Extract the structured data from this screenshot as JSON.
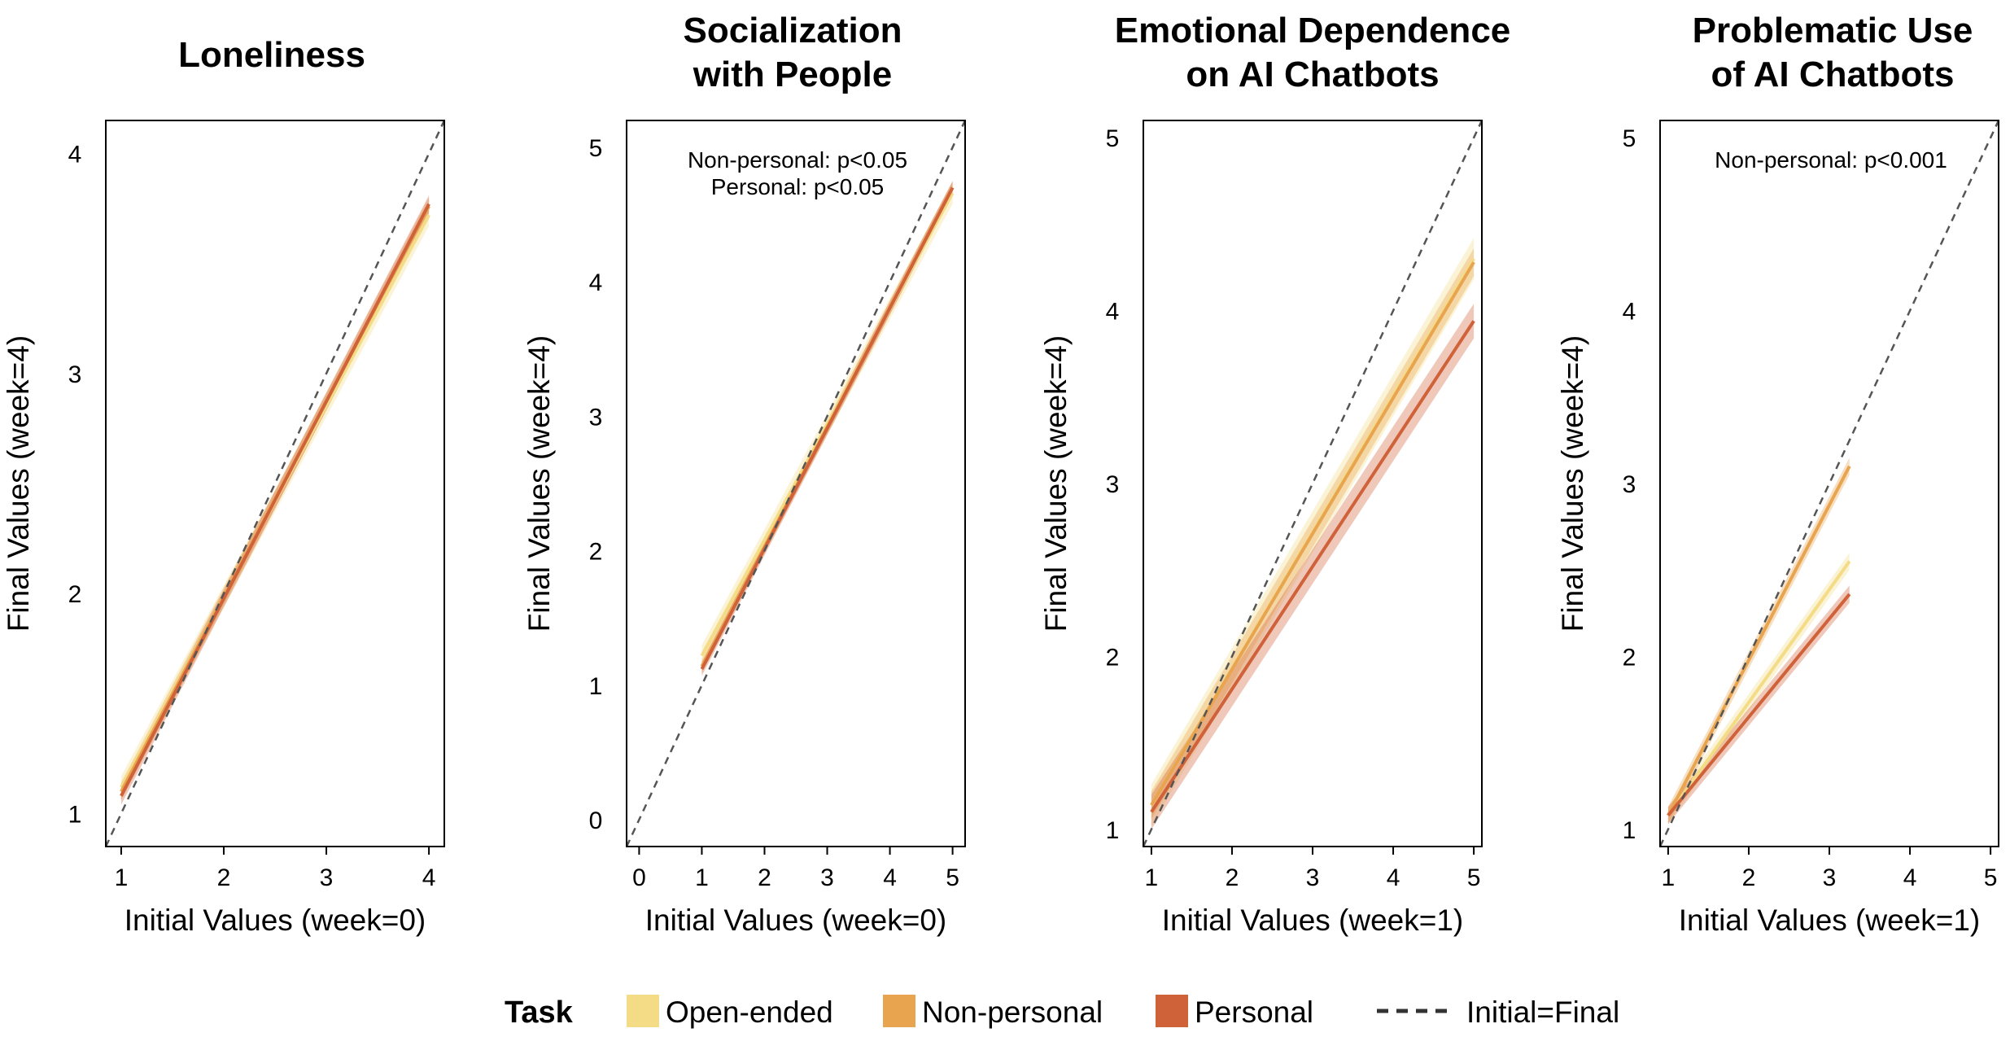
{
  "colors": {
    "open_ended": "#F4DC86",
    "non_personal": "#E8A44E",
    "personal": "#D0623A",
    "reference": "#555555"
  },
  "legend": {
    "title": "Task",
    "items": [
      {
        "label": "Open-ended",
        "color": "#F4DC86",
        "kind": "swatch"
      },
      {
        "label": "Non-personal",
        "color": "#E8A44E",
        "kind": "swatch"
      },
      {
        "label": "Personal",
        "color": "#D0623A",
        "kind": "swatch"
      },
      {
        "label": "Initial=Final",
        "color": "#333333",
        "kind": "dashed"
      }
    ]
  },
  "chart_data": [
    {
      "type": "line",
      "title": [
        "Loneliness"
      ],
      "xlabel": "Initial Values (week=0)",
      "ylabel": "Final Values (week=4)",
      "xlim": [
        0.85,
        4.15
      ],
      "ylim": [
        0.85,
        4.15
      ],
      "xticks": [
        1,
        2,
        3,
        4
      ],
      "yticks": [
        1,
        2,
        3,
        4
      ],
      "annotations": [],
      "reference_line": "Initial=Final",
      "series": [
        {
          "name": "Open-ended",
          "x": [
            1,
            4
          ],
          "y": [
            1.12,
            3.72
          ],
          "ci": 0.05
        },
        {
          "name": "Non-personal",
          "x": [
            1,
            4
          ],
          "y": [
            1.1,
            3.76
          ],
          "ci": 0.04
        },
        {
          "name": "Personal",
          "x": [
            1,
            4
          ],
          "y": [
            1.08,
            3.77
          ],
          "ci": 0.04
        }
      ]
    },
    {
      "type": "line",
      "title": [
        "Socialization",
        "with People"
      ],
      "xlabel": "Initial Values (week=0)",
      "ylabel": "Final Values (week=4)",
      "xlim": [
        -0.2,
        5.2
      ],
      "ylim": [
        -0.2,
        5.2
      ],
      "xticks": [
        0,
        1,
        2,
        3,
        4,
        5
      ],
      "yticks": [
        0,
        1,
        2,
        3,
        4,
        5
      ],
      "annotations": [
        "Non-personal: p<0.05",
        "Personal: p<0.05"
      ],
      "reference_line": "Initial=Final",
      "series": [
        {
          "name": "Open-ended",
          "x": [
            1,
            5
          ],
          "y": [
            1.22,
            4.66
          ],
          "ci": 0.08
        },
        {
          "name": "Non-personal",
          "x": [
            1,
            5
          ],
          "y": [
            1.14,
            4.7
          ],
          "ci": 0.05
        },
        {
          "name": "Personal",
          "x": [
            1,
            5
          ],
          "y": [
            1.12,
            4.7
          ],
          "ci": 0.05
        }
      ]
    },
    {
      "type": "line",
      "title": [
        "Emotional Dependence",
        "on AI Chatbots"
      ],
      "xlabel": "Initial Values (week=1)",
      "ylabel": "Final Values (week=4)",
      "xlim": [
        0.9,
        5.1
      ],
      "ylim": [
        0.9,
        5.1
      ],
      "xticks": [
        1,
        2,
        3,
        4,
        5
      ],
      "yticks": [
        1,
        2,
        3,
        4,
        5
      ],
      "annotations": [],
      "reference_line": "Initial=Final",
      "series": [
        {
          "name": "Open-ended",
          "x": [
            1,
            5
          ],
          "y": [
            1.14,
            4.3
          ],
          "ci": 0.12
        },
        {
          "name": "Non-personal",
          "x": [
            1,
            5
          ],
          "y": [
            1.14,
            4.28
          ],
          "ci": 0.08
        },
        {
          "name": "Personal",
          "x": [
            1,
            5
          ],
          "y": [
            1.1,
            3.94
          ],
          "ci": 0.1
        }
      ]
    },
    {
      "type": "line",
      "title": [
        "Problematic Use",
        "of AI Chatbots"
      ],
      "xlabel": "Initial Values (week=1)",
      "ylabel": "Final Values (week=4)",
      "xlim": [
        0.9,
        5.1
      ],
      "ylim": [
        0.9,
        5.1
      ],
      "xticks": [
        1,
        2,
        3,
        4,
        5
      ],
      "yticks": [
        1,
        2,
        3,
        4,
        5
      ],
      "annotations": [
        "Non-personal: p<0.001"
      ],
      "reference_line": "Initial=Final",
      "series": [
        {
          "name": "Open-ended",
          "x": [
            1,
            3.25
          ],
          "y": [
            1.08,
            2.55
          ],
          "ci": 0.05
        },
        {
          "name": "Non-personal",
          "x": [
            1,
            3.25
          ],
          "y": [
            1.08,
            3.1
          ],
          "ci": 0.05
        },
        {
          "name": "Personal",
          "x": [
            1,
            3.25
          ],
          "y": [
            1.08,
            2.36
          ],
          "ci": 0.05
        }
      ]
    }
  ]
}
